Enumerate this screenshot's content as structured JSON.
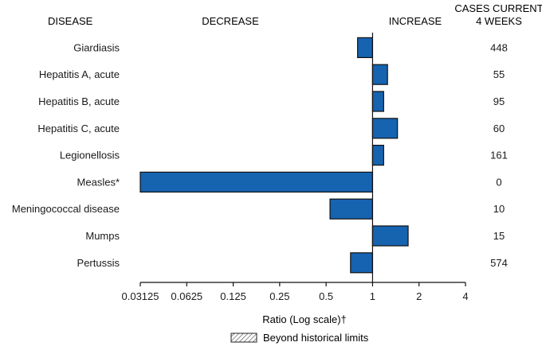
{
  "headers": {
    "disease": "DISEASE",
    "decrease": "DECREASE",
    "increase": "INCREASE",
    "cases_line1": "CASES CURRENT",
    "cases_line2": "4 WEEKS"
  },
  "colors": {
    "bar_fill": "#1663b0",
    "bar_stroke": "#111111",
    "text": "#1a1a1a"
  },
  "chart_data": {
    "type": "bar",
    "orientation": "horizontal",
    "categories": [
      "Giardiasis",
      "Hepatitis A, acute",
      "Hepatitis B, acute",
      "Hepatitis C, acute",
      "Legionellosis",
      "Measles*",
      "Meningococcal disease",
      "Mumps",
      "Pertussis"
    ],
    "values": [
      0.8,
      1.25,
      1.18,
      1.45,
      1.18,
      0.03125,
      0.53,
      1.7,
      0.72
    ],
    "cases_current_4_weeks": [
      "448",
      "55",
      "95",
      "60",
      "161",
      "0",
      "10",
      "15",
      "574"
    ],
    "xlabel": "Ratio (Log scale)†",
    "xscale": "log2",
    "xlim": [
      0.03125,
      4
    ],
    "xticks": [
      0.03125,
      0.0625,
      0.125,
      0.25,
      0.5,
      1,
      2,
      4
    ],
    "xtick_labels": [
      "0.03125",
      "0.0625",
      "0.125",
      "0.25",
      "0.5",
      "1",
      "2",
      "4"
    ],
    "baseline": 1,
    "legend": {
      "label": "Beyond historical limits",
      "placement": "bottom-center"
    }
  }
}
